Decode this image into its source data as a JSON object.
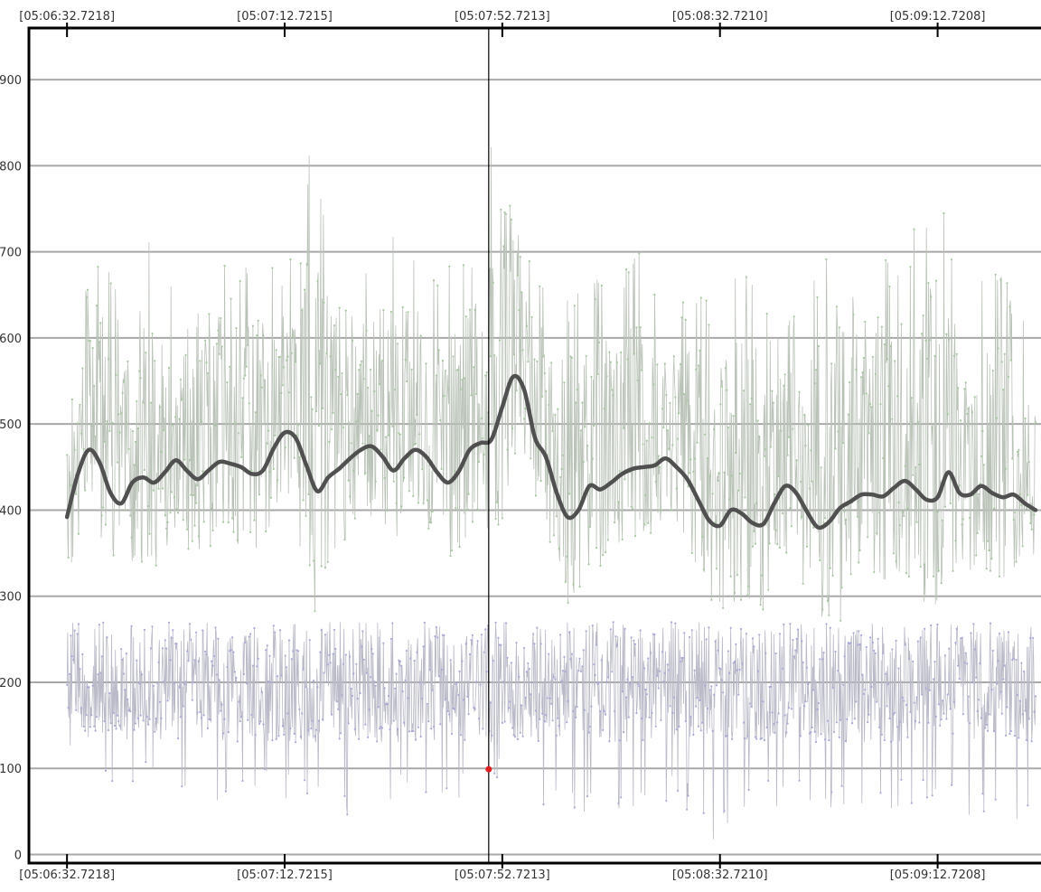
{
  "chart_data": {
    "type": "line",
    "title": "",
    "xlabel": "",
    "ylabel": "",
    "x_tick_labels": [
      "[05:06:32.7218]",
      "[05:07:12.7215]",
      "[05:07:52.7213]",
      "[05:08:32.7210]",
      "[05:09:12.7208]"
    ],
    "x_ticks_seconds": [
      0,
      40,
      80,
      120,
      160
    ],
    "xlim_seconds": [
      -7,
      179
    ],
    "ylim": [
      -10,
      960
    ],
    "y_ticks": [
      0,
      100,
      200,
      300,
      400,
      500,
      600,
      700,
      800,
      900
    ],
    "grid": true,
    "legend": "none",
    "cursor": {
      "x_seconds": 77.5,
      "marker_value": 99
    },
    "colors": {
      "high_band": "#b9c2b7",
      "high_points": "#a6c79f",
      "low_band": "#b9b9c7",
      "low_points": "#a9a9d8",
      "average": "#505050",
      "cursor": "#000000",
      "marker": "#e02020",
      "gridline": "#8c8c8c",
      "axis": "#000000"
    },
    "series": [
      {
        "role": "average",
        "x_seconds": [
          0,
          2,
          4,
          6,
          8,
          10,
          12,
          14,
          16,
          18,
          20,
          22,
          24,
          26,
          28,
          30,
          32,
          34,
          36,
          38,
          40,
          42,
          44,
          46,
          48,
          50,
          52,
          54,
          56,
          58,
          60,
          62,
          64,
          66,
          68,
          70,
          72,
          74,
          76,
          78,
          80,
          82,
          84,
          86,
          88,
          90,
          92,
          94,
          96,
          98,
          100,
          102,
          104,
          106,
          108,
          110,
          112,
          114,
          116,
          118,
          120,
          122,
          124,
          126,
          128,
          130,
          132,
          134,
          136,
          138,
          140,
          142,
          144,
          146,
          148,
          150,
          152,
          154,
          156,
          158,
          160,
          162,
          164,
          166,
          168,
          170,
          172,
          174,
          176,
          178
        ],
        "values": [
          392,
          442,
          470,
          455,
          420,
          408,
          432,
          438,
          432,
          444,
          458,
          446,
          436,
          446,
          456,
          454,
          450,
          442,
          446,
          472,
          490,
          484,
          452,
          422,
          438,
          448,
          460,
          470,
          474,
          462,
          446,
          460,
          470,
          462,
          444,
          432,
          445,
          470,
          478,
          482,
          520,
          555,
          540,
          484,
          462,
          420,
          392,
          400,
          428,
          424,
          432,
          442,
          448,
          450,
          452,
          460,
          450,
          436,
          412,
          388,
          382,
          400,
          396,
          385,
          384,
          408,
          428,
          420,
          398,
          380,
          386,
          402,
          410,
          418,
          418,
          416,
          426,
          434,
          424,
          412,
          415,
          444,
          420,
          418,
          428,
          420,
          415,
          418,
          408,
          400
        ]
      },
      {
        "role": "upper envelope",
        "x_seconds": [
          0,
          5,
          10,
          15,
          20,
          25,
          30,
          35,
          40,
          45,
          50,
          55,
          60,
          65,
          70,
          75,
          78,
          81,
          85,
          90,
          95,
          100,
          105,
          110,
          115,
          120,
          125,
          130,
          135,
          140,
          145,
          150,
          155,
          160,
          165,
          170,
          175,
          178
        ],
        "values": [
          590,
          720,
          640,
          745,
          660,
          720,
          680,
          700,
          700,
          825,
          710,
          690,
          720,
          700,
          690,
          720,
          830,
          875,
          700,
          650,
          660,
          690,
          700,
          640,
          660,
          650,
          700,
          620,
          640,
          710,
          800,
          690,
          720,
          800,
          660,
          690,
          650,
          640
        ]
      },
      {
        "role": "lower envelope",
        "x_seconds": [
          0,
          5,
          10,
          15,
          20,
          25,
          30,
          35,
          40,
          45,
          50,
          55,
          60,
          65,
          70,
          75,
          78,
          81,
          85,
          90,
          95,
          100,
          105,
          110,
          115,
          120,
          125,
          130,
          135,
          140,
          145,
          150,
          155,
          160,
          165,
          170,
          175,
          178
        ],
        "values": [
          120,
          60,
          70,
          80,
          70,
          40,
          60,
          60,
          65,
          70,
          60,
          10,
          50,
          70,
          50,
          60,
          99,
          40,
          50,
          60,
          50,
          20,
          40,
          60,
          50,
          5,
          40,
          50,
          60,
          40,
          50,
          45,
          50,
          50,
          40,
          50,
          30,
          80
        ]
      }
    ]
  }
}
